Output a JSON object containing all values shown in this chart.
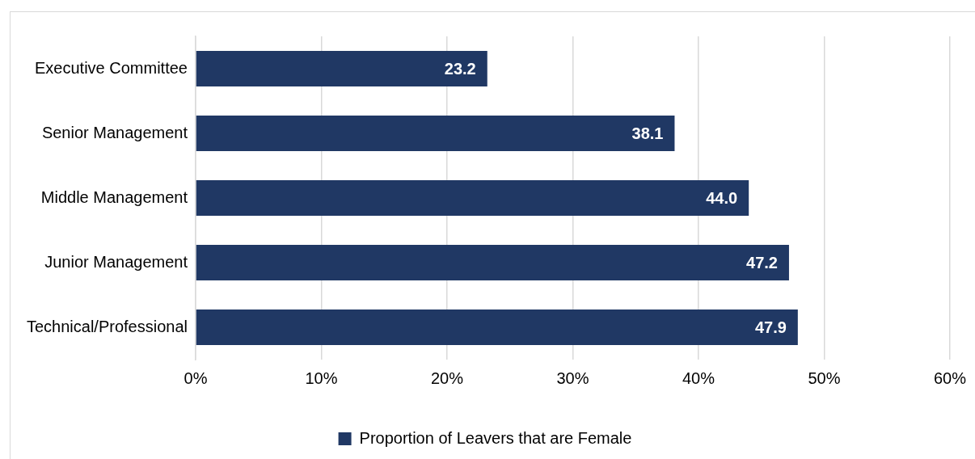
{
  "chart_data": {
    "type": "bar",
    "orientation": "horizontal",
    "categories": [
      "Executive Committee",
      "Senior Management",
      "Middle Management",
      "Junior Management",
      "Technical/Professional"
    ],
    "series": [
      {
        "name": "Proportion of Leavers that are Female",
        "color": "#203864",
        "values": [
          23.2,
          38.1,
          44.0,
          47.2,
          47.9
        ],
        "value_labels": [
          "23.2",
          "38.1",
          "44.0",
          "47.2",
          "47.9"
        ]
      }
    ],
    "xlim": [
      0,
      60
    ],
    "xticks": [
      {
        "value": 0,
        "label": "0%"
      },
      {
        "value": 10,
        "label": "10%"
      },
      {
        "value": 20,
        "label": "20%"
      },
      {
        "value": 30,
        "label": "30%"
      },
      {
        "value": 40,
        "label": "40%"
      },
      {
        "value": 50,
        "label": "50%"
      },
      {
        "value": 60,
        "label": "60%"
      }
    ],
    "grid": "x",
    "legend": "bottom"
  }
}
